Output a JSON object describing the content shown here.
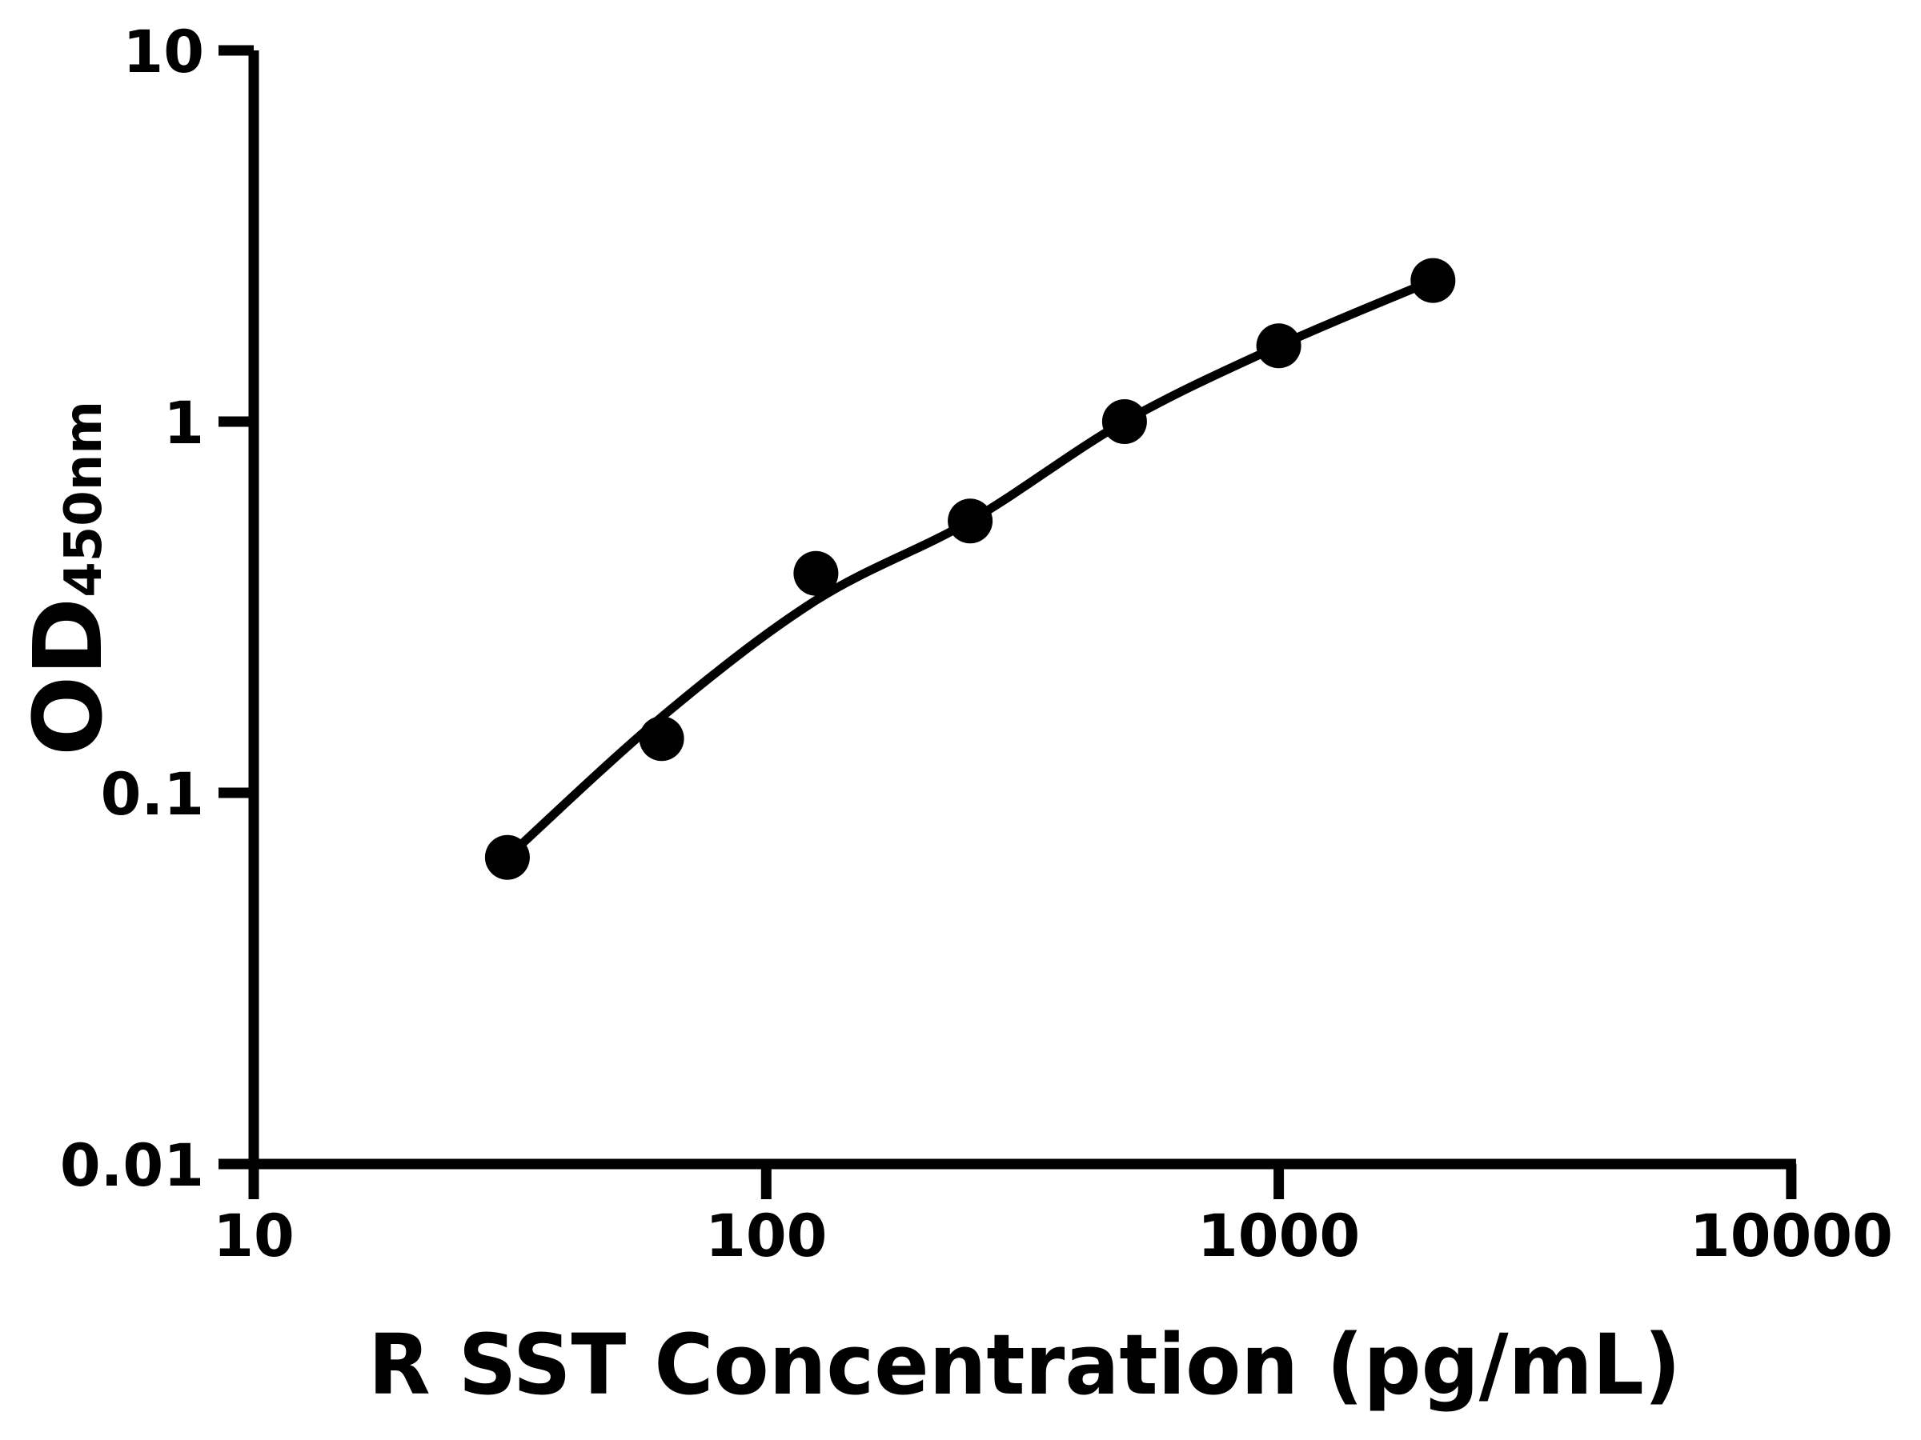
{
  "figure": {
    "background": "#ffffff",
    "ink_color": "#000000"
  },
  "chart_data": {
    "type": "scatter",
    "title": "",
    "xlabel": "R SST Concentration (pg/mL)",
    "ylabel": "OD450nm",
    "ylabel_main": "OD",
    "ylabel_sub": "450nm",
    "x_scale": "log",
    "y_scale": "log",
    "xlim": [
      10,
      10000
    ],
    "ylim": [
      0.01,
      10
    ],
    "x_ticks": [
      10,
      100,
      1000,
      10000
    ],
    "x_tick_labels": [
      "10",
      "100",
      "1000",
      "10000"
    ],
    "y_ticks": [
      10,
      1,
      0.1,
      0.01
    ],
    "y_tick_labels": [
      "10",
      "1",
      "0.1",
      "0.01"
    ],
    "grid": false,
    "legend": "none",
    "series": [
      {
        "name": "standard-points",
        "type": "scatter",
        "marker": "filled-circle",
        "color": "#000000",
        "x": [
          31.25,
          62.5,
          125,
          250,
          500,
          1000,
          2000
        ],
        "y": [
          0.067,
          0.14,
          0.39,
          0.54,
          1.0,
          1.6,
          2.4
        ]
      },
      {
        "name": "fit-curve",
        "type": "line",
        "color": "#000000",
        "x": [
          31.25,
          62.5,
          125,
          250,
          500,
          1000,
          2000
        ],
        "y": [
          0.067,
          0.16,
          0.33,
          0.54,
          1.0,
          1.6,
          2.4
        ]
      }
    ]
  }
}
